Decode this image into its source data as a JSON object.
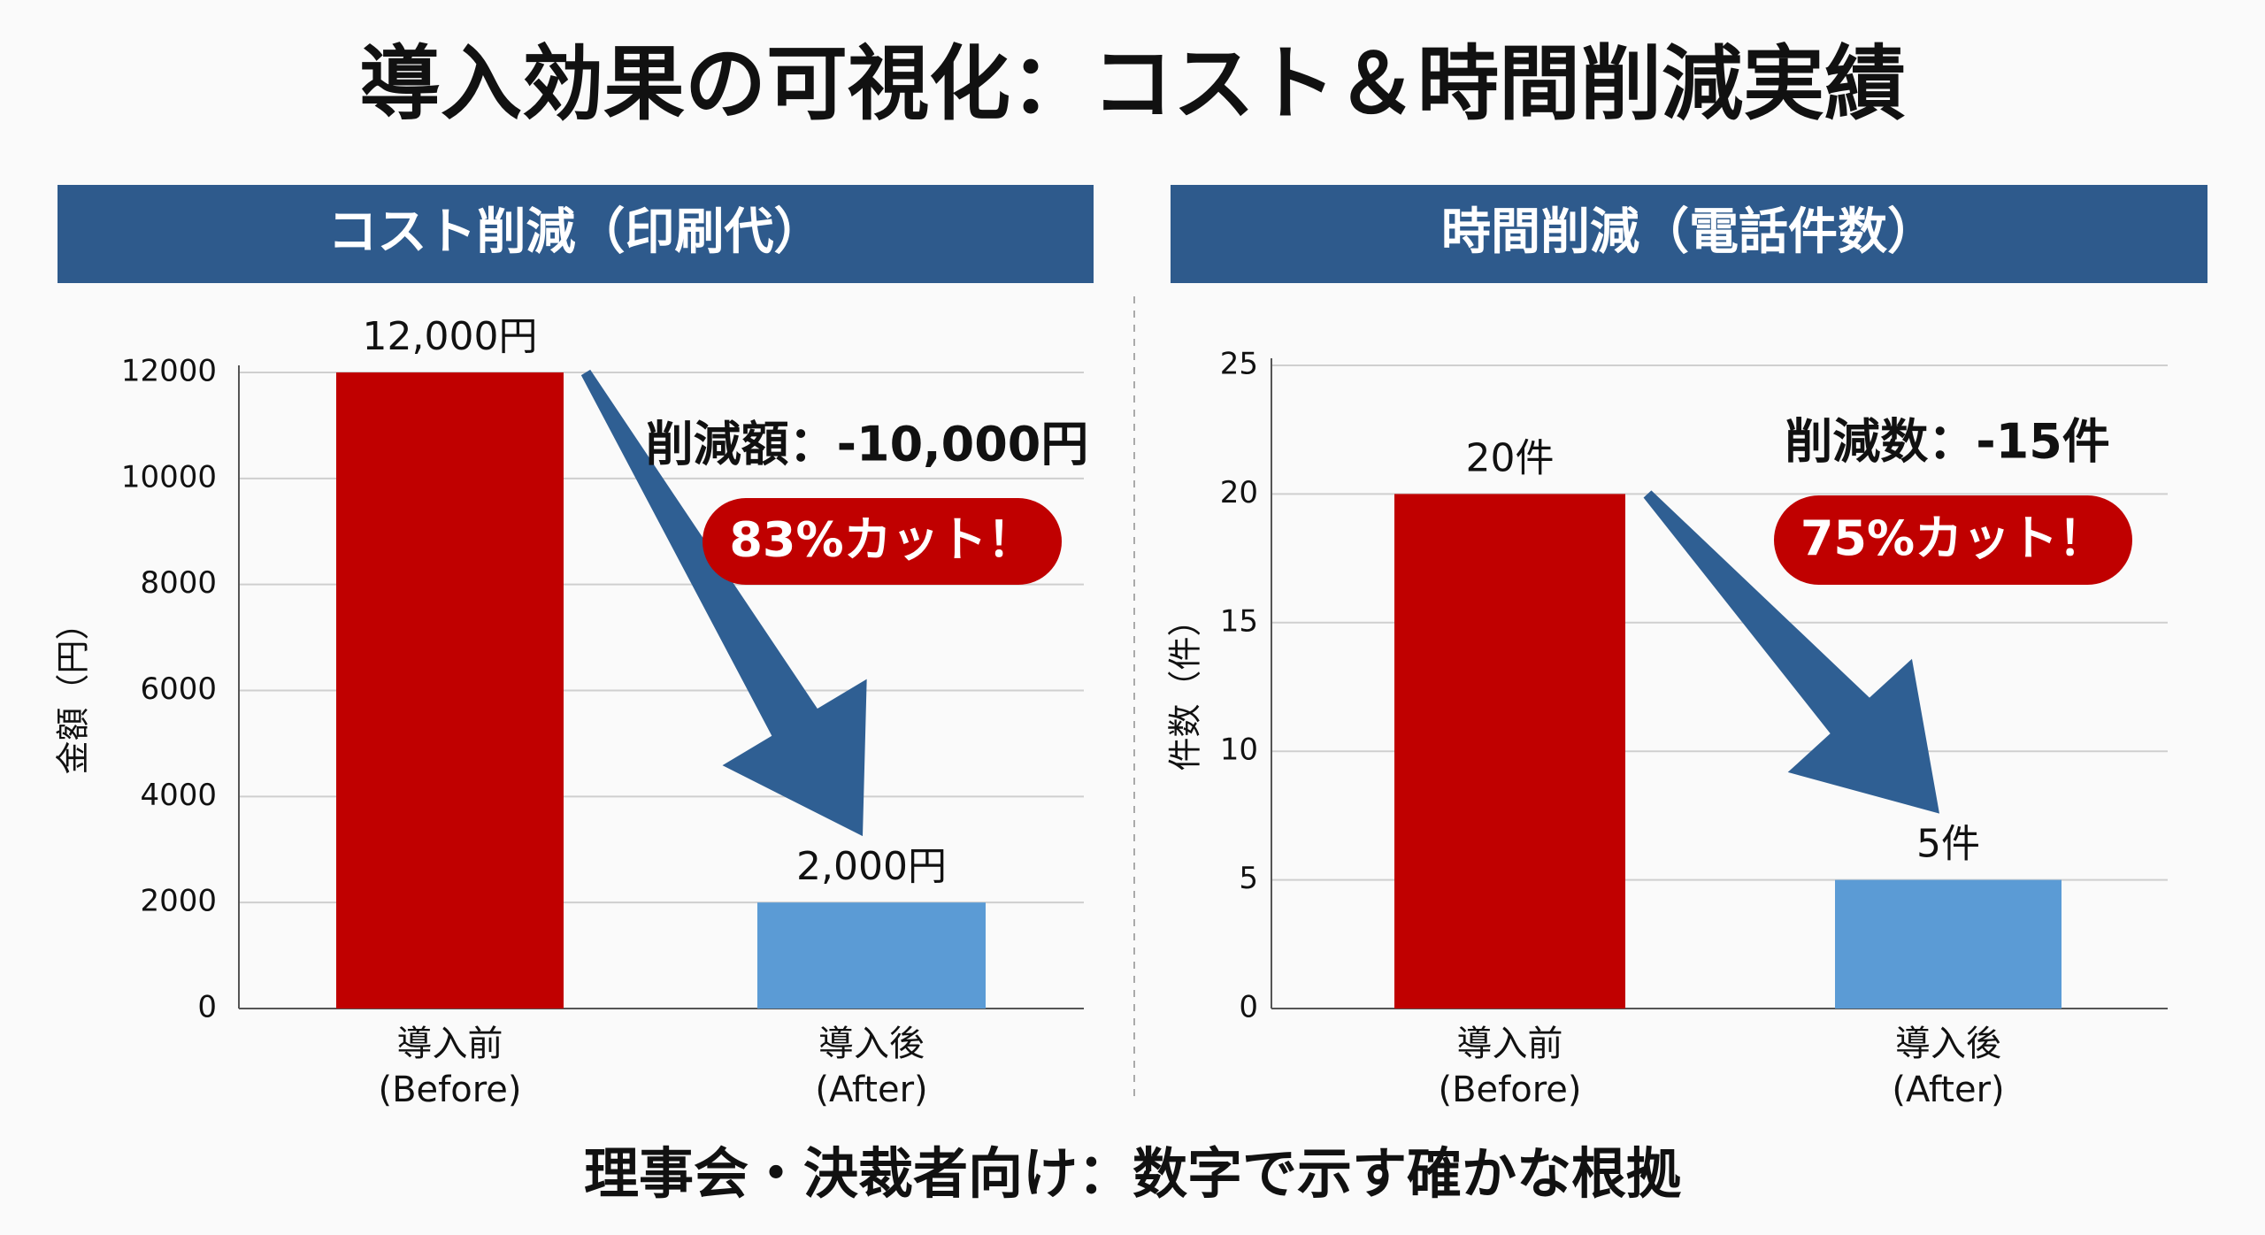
{
  "title": "導入効果の可視化：コスト＆時間削減実績",
  "footer": "理事会・決裁者向け：数字で示す確かな根拠",
  "chart_data": [
    {
      "type": "bar",
      "title": "コスト削減（印刷代）",
      "ylabel": "金額（円）",
      "categories": [
        [
          "導入前",
          "(Before)"
        ],
        [
          "導入後",
          "(After)"
        ]
      ],
      "values": [
        12000,
        2000
      ],
      "value_labels": [
        "12,000円",
        "2,000円"
      ],
      "colors": [
        "#c00000",
        "#5b9bd5"
      ],
      "ylim": [
        0,
        12000
      ],
      "yticks": [
        0,
        2000,
        4000,
        6000,
        8000,
        10000,
        12000
      ],
      "grid": true,
      "annotations": [
        "削減額：-10,000円",
        "83%カット！"
      ]
    },
    {
      "type": "bar",
      "title": "時間削減（電話件数）",
      "ylabel": "件数（件）",
      "categories": [
        [
          "導入前",
          "(Before)"
        ],
        [
          "導入後",
          "(After)"
        ]
      ],
      "values": [
        20,
        5
      ],
      "value_labels": [
        "20件",
        "5件"
      ],
      "colors": [
        "#c00000",
        "#5b9bd5"
      ],
      "ylim": [
        0,
        25
      ],
      "yticks": [
        0,
        5,
        10,
        15,
        20,
        25
      ],
      "grid": true,
      "annotations": [
        "削減数：-15件",
        "75%カット！"
      ]
    }
  ]
}
